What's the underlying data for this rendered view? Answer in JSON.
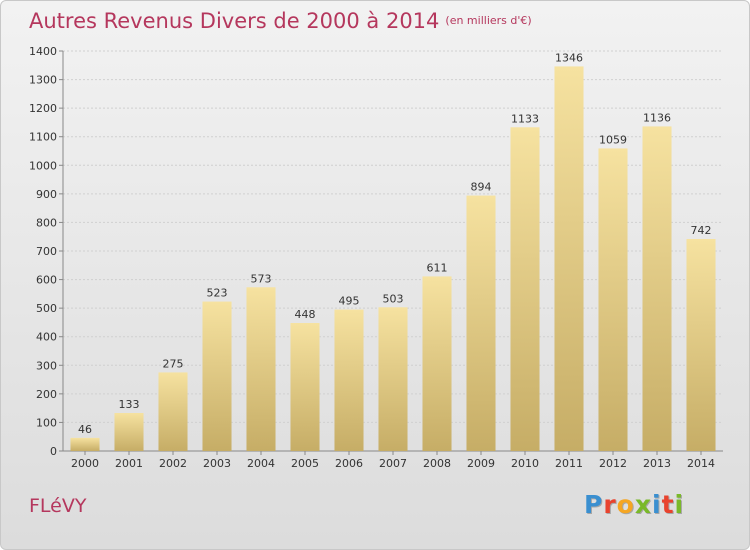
{
  "header": {
    "title": "Autres Revenus Divers de 2000 à 2014",
    "unit": "(en milliers d'€)"
  },
  "commune": "FLéVY",
  "logo": {
    "text": "Proxiti",
    "letter_colors": [
      "#3a8fd0",
      "#e8432e",
      "#f5a623",
      "#7ab929",
      "#3a8fd0",
      "#e8432e",
      "#7ab929"
    ]
  },
  "colors": {
    "title": "#b5375d",
    "bar_light": "#f6e2a0",
    "bar_dark": "#c6ad66"
  },
  "chart_data": {
    "type": "bar",
    "title": "Autres Revenus Divers de 2000 à 2014",
    "subtitle": "(en milliers d'€)",
    "categories": [
      "2000",
      "2001",
      "2002",
      "2003",
      "2004",
      "2005",
      "2006",
      "2007",
      "2008",
      "2009",
      "2010",
      "2011",
      "2012",
      "2013",
      "2014"
    ],
    "values": [
      46,
      133,
      275,
      523,
      573,
      448,
      495,
      503,
      611,
      894,
      1133,
      1346,
      1059,
      1136,
      742
    ],
    "ylim": [
      0,
      1400
    ],
    "yticks": [
      0,
      100,
      200,
      300,
      400,
      500,
      600,
      700,
      800,
      900,
      1000,
      1100,
      1200,
      1300,
      1400
    ],
    "grid": true,
    "data_labels": true
  }
}
